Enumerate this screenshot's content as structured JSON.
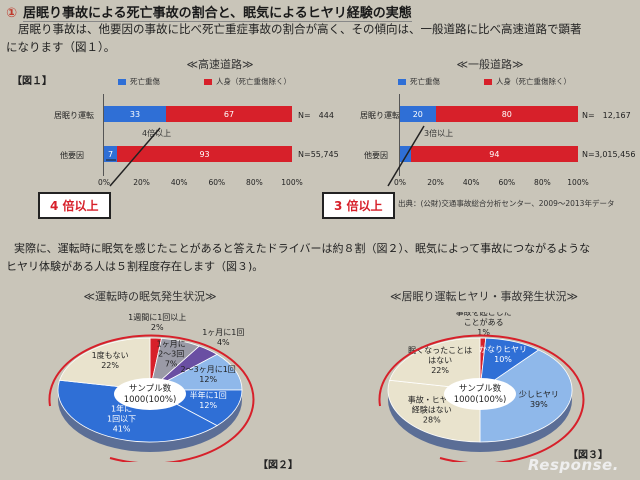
{
  "title": {
    "number": "①",
    "text": "居眠り事故による死亡事故の割合と、眠気によるヒヤリ経験の実態"
  },
  "intro": {
    "line1": "居眠り事故は、他要因の事故に比べ死亡重症事故の割合が高く、その傾向は、一般道路に比べ高速道路で顕著",
    "line2": "になります（図１）。"
  },
  "fig1_label": "【図１】",
  "legend": {
    "death": "死亡重傷",
    "injury": "人身（死亡重傷除く）"
  },
  "colors": {
    "blue": "#2f6fd6",
    "red": "#d7202a",
    "gray": "#9a9aa6",
    "purple": "#6a4fa3",
    "lightblue": "#8fb8ea",
    "beige": "#e9e3cd"
  },
  "chart_data": [
    {
      "type": "bar",
      "title": "≪高速道路≫",
      "orientation": "horizontal-stacked",
      "categories": [
        "居眠り運転",
        "他要因"
      ],
      "series": [
        {
          "name": "死亡重傷",
          "values": [
            33,
            7
          ]
        },
        {
          "name": "人身（死亡重傷除く）",
          "values": [
            67,
            93
          ]
        }
      ],
      "n_labels": [
        "N=　444",
        "N=55,745"
      ],
      "xticks": [
        "0%",
        "20%",
        "40%",
        "60%",
        "80%",
        "100%"
      ],
      "xlim": [
        0,
        100
      ],
      "annotation": "4倍以上",
      "callout": "4 倍以上"
    },
    {
      "type": "bar",
      "title": "≪一般道路≫",
      "orientation": "horizontal-stacked",
      "categories": [
        "居眠り運転",
        "他要因"
      ],
      "series": [
        {
          "name": "死亡重傷",
          "values": [
            20,
            6
          ]
        },
        {
          "name": "人身（死亡重傷除く）",
          "values": [
            80,
            94
          ]
        }
      ],
      "n_labels": [
        "N=　12,167",
        "N=3,015,456"
      ],
      "xticks": [
        "0%",
        "20%",
        "40%",
        "60%",
        "80%",
        "100%"
      ],
      "xlim": [
        0,
        100
      ],
      "annotation": "3倍以上",
      "callout": "3 倍以上"
    },
    {
      "type": "pie",
      "title": "≪運転時の眠気発生状況≫",
      "center": [
        "サンプル数",
        "1000(100%)"
      ],
      "slices": [
        {
          "label": [
            "1週間に1回以上"
          ],
          "pct": "2%",
          "value": 2
        },
        {
          "label": [
            "1ヶ月に",
            "2～3回"
          ],
          "pct": "7%",
          "value": 7
        },
        {
          "label": [
            "1ヶ月に1回"
          ],
          "pct": "4%",
          "value": 4
        },
        {
          "label": [
            "2～3ヶ月に1回"
          ],
          "pct": "12%",
          "value": 12
        },
        {
          "label": [
            "半年に1回"
          ],
          "pct": "12%",
          "value": 12
        },
        {
          "label": [
            "1年に",
            "1回以下"
          ],
          "pct": "41%",
          "value": 41
        },
        {
          "label": [
            "1度もない"
          ],
          "pct": "22%",
          "value": 22
        }
      ]
    },
    {
      "type": "pie",
      "title": "≪居眠り運転ヒヤリ・事故発生状況≫",
      "center": [
        "サンプル数",
        "1000(100%)"
      ],
      "slices": [
        {
          "label": [
            "事故を起こした",
            "ことがある"
          ],
          "pct": "1%",
          "value": 1
        },
        {
          "label": [
            "かなりヒヤリ"
          ],
          "pct": "10%",
          "value": 10
        },
        {
          "label": [
            "少しヒヤリ"
          ],
          "pct": "39%",
          "value": 39
        },
        {
          "label": [
            "事故・ヒヤリ",
            "経験はない"
          ],
          "pct": "28%",
          "value": 28
        },
        {
          "label": [
            "眠くなったことは",
            "はない"
          ],
          "pct": "22%",
          "value": 22
        }
      ]
    }
  ],
  "source": "出典：(公財)交通事故総合分析センター、2009～2013年データ",
  "para2": {
    "line1": "実際に、運転時に眠気を感じたことがあると答えたドライバーは約８割（図２）、眠気によって事故につながるような",
    "line2": "ヒヤリ体験がある人は５割程度存在します（図３)。"
  },
  "fig2_label": "【図２】",
  "fig3_label": "【図３】",
  "watermark": "Response."
}
